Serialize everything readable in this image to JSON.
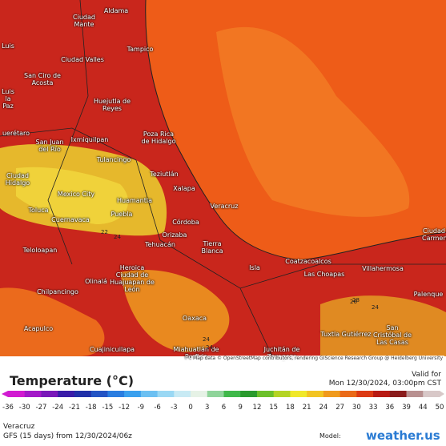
{
  "places": [
    "Aldama",
    "Ciudad Mante",
    "Tampico",
    "Luis",
    "Ciudad Valles",
    "San Ciro de Acosta",
    "Luis la Paz",
    "Huejutla de Reyes",
    "uerétaro",
    "San Juan del Río",
    "Ixmiquilpan",
    "Poza Rica de Hidalgo",
    "Tulancingo",
    "Ciudad Hidalgo",
    "Teziutlán",
    "Mexico City",
    "Xalapa",
    "Huamantla",
    "Toluca",
    "Veracruz",
    "Cuernavaca",
    "Puebla",
    "Córdoba",
    "Orizaba",
    "Tehuacán",
    "Tierra Blanca",
    "Teloloapan",
    "Heroica Ciudad de Huajuapan de León",
    "Coatzacoalcos",
    "Isla",
    "Las Choapas",
    "Villahermosa",
    "Chilpancingo",
    "Olinalá",
    "Palenque",
    "Oaxaca",
    "Acapulco",
    "San Cristóbal de Las Casas",
    "Tuxtla Gutiérrez",
    "Miahuatlán de Porfirio",
    "Juchitán de Zaragoza",
    "Cuajinicuilapa",
    "Ciudad Carmen"
  ],
  "contours": [
    "22",
    "24",
    "24",
    "26",
    "28",
    "24",
    "24"
  ],
  "attribution": "Map data © OpenStreetMap contributors, rendering GIScience Research Group @ Heidelberg University",
  "legend": {
    "title": "Temperature (°C)",
    "valid_label": "Valid for",
    "valid_time": "Mon 12/30/2024, 03:00pm CST",
    "ticks": [
      -36,
      -30,
      -27,
      -24,
      -21,
      -18,
      -15,
      -12,
      -9,
      -6,
      -3,
      0,
      3,
      6,
      9,
      12,
      15,
      18,
      21,
      24,
      27,
      30,
      33,
      36,
      39,
      44,
      50
    ]
  },
  "footer": {
    "location": "Veracruz",
    "model_run": "GFS (15 days) from 12/30/2024/06z",
    "model_label": "Model:",
    "brand": "weather.us"
  }
}
